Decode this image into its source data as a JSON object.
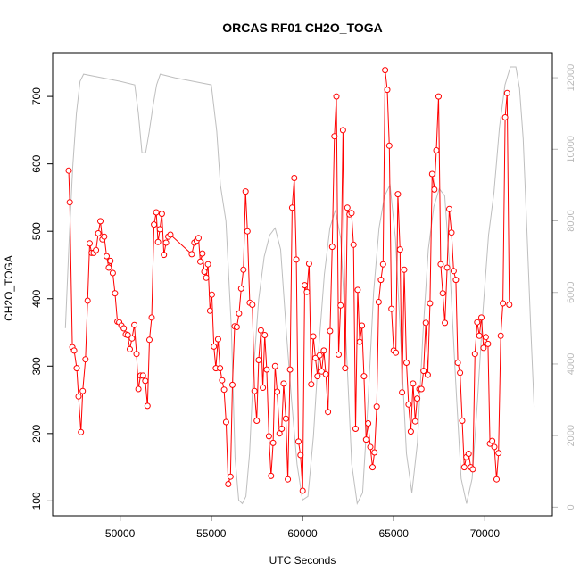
{
  "chart_data": {
    "type": "line",
    "title": "ORCAS RF01 CH2O_TOGA",
    "xlabel": "UTC Seconds",
    "ylabel": "CH2O_TOGA",
    "xlim": [
      46300,
      73700
    ],
    "ylim": [
      78,
      765
    ],
    "y2lim": [
      -240,
      12700
    ],
    "x_ticks": [
      50000,
      55000,
      60000,
      65000,
      70000
    ],
    "y_ticks": [
      100,
      200,
      300,
      400,
      500,
      600,
      700
    ],
    "y2_ticks": [
      0,
      2000,
      4000,
      6000,
      8000,
      10000,
      12000
    ],
    "colors": {
      "ch2o": "#ff0000",
      "altitude": "#bebebe",
      "frame": "#000000",
      "right_axis": "#b8b8b8"
    },
    "series": [
      {
        "role": "CH2O_TOGA",
        "style": "line+open-circles",
        "points": [
          [
            47180,
            590
          ],
          [
            47240,
            543
          ],
          [
            47380,
            328
          ],
          [
            47480,
            323
          ],
          [
            47620,
            297
          ],
          [
            47720,
            255
          ],
          [
            47850,
            202
          ],
          [
            47950,
            263
          ],
          [
            48100,
            310
          ],
          [
            48220,
            397
          ],
          [
            48330,
            482
          ],
          [
            48440,
            468
          ],
          [
            48550,
            468
          ],
          [
            48680,
            472
          ],
          [
            48800,
            497
          ],
          [
            48920,
            515
          ],
          [
            49030,
            488
          ],
          [
            49130,
            492
          ],
          [
            49260,
            463
          ],
          [
            49380,
            446
          ],
          [
            49470,
            456
          ],
          [
            49600,
            438
          ],
          [
            49720,
            408
          ],
          [
            49850,
            366
          ],
          [
            49950,
            365
          ],
          [
            50070,
            360
          ],
          [
            50200,
            356
          ],
          [
            50310,
            347
          ],
          [
            50420,
            346
          ],
          [
            50530,
            325
          ],
          [
            50650,
            341
          ],
          [
            50780,
            361
          ],
          [
            50900,
            318
          ],
          [
            51000,
            266
          ],
          [
            51120,
            286
          ],
          [
            51250,
            286
          ],
          [
            51380,
            278
          ],
          [
            51500,
            241
          ],
          [
            51610,
            339
          ],
          [
            51730,
            372
          ],
          [
            51860,
            510
          ],
          [
            51980,
            528
          ],
          [
            52080,
            484
          ],
          [
            52180,
            503
          ],
          [
            52290,
            526
          ],
          [
            52400,
            465
          ],
          [
            52520,
            483
          ],
          [
            52640,
            492
          ],
          [
            52760,
            495
          ],
          [
            53930,
            466
          ],
          [
            54070,
            483
          ],
          [
            54190,
            486
          ],
          [
            54300,
            490
          ],
          [
            54400,
            455
          ],
          [
            54510,
            467
          ],
          [
            54620,
            440
          ],
          [
            54720,
            431
          ],
          [
            54820,
            451
          ],
          [
            54930,
            382
          ],
          [
            55030,
            406
          ],
          [
            55140,
            329
          ],
          [
            55250,
            297
          ],
          [
            55370,
            340
          ],
          [
            55480,
            297
          ],
          [
            55590,
            279
          ],
          [
            55700,
            265
          ],
          [
            55810,
            217
          ],
          [
            55930,
            125
          ],
          [
            56050,
            136
          ],
          [
            56160,
            272
          ],
          [
            56280,
            359
          ],
          [
            56400,
            358
          ],
          [
            56520,
            378
          ],
          [
            56640,
            415
          ],
          [
            56760,
            443
          ],
          [
            56880,
            559
          ],
          [
            56980,
            500
          ],
          [
            57110,
            394
          ],
          [
            57250,
            391
          ],
          [
            57370,
            263
          ],
          [
            57490,
            219
          ],
          [
            57600,
            309
          ],
          [
            57720,
            353
          ],
          [
            57830,
            268
          ],
          [
            57930,
            346
          ],
          [
            58040,
            295
          ],
          [
            58160,
            196
          ],
          [
            58280,
            137
          ],
          [
            58390,
            186
          ],
          [
            58500,
            300
          ],
          [
            58610,
            262
          ],
          [
            58740,
            200
          ],
          [
            58860,
            207
          ],
          [
            58970,
            274
          ],
          [
            59090,
            222
          ],
          [
            59200,
            132
          ],
          [
            59320,
            295
          ],
          [
            59430,
            535
          ],
          [
            59550,
            579
          ],
          [
            59660,
            458
          ],
          [
            59780,
            188
          ],
          [
            59890,
            168
          ],
          [
            60010,
            115
          ],
          [
            60120,
            420
          ],
          [
            60240,
            410
          ],
          [
            60360,
            452
          ],
          [
            60480,
            273
          ],
          [
            60590,
            344
          ],
          [
            60710,
            312
          ],
          [
            60820,
            285
          ],
          [
            60940,
            316
          ],
          [
            61050,
            292
          ],
          [
            61170,
            323
          ],
          [
            61280,
            288
          ],
          [
            61400,
            232
          ],
          [
            61510,
            352
          ],
          [
            61630,
            477
          ],
          [
            61750,
            641
          ],
          [
            61860,
            700
          ],
          [
            61980,
            317
          ],
          [
            62090,
            390
          ],
          [
            62220,
            650
          ],
          [
            62340,
            297
          ],
          [
            62460,
            535
          ],
          [
            62580,
            525
          ],
          [
            62690,
            527
          ],
          [
            62800,
            480
          ],
          [
            62910,
            207
          ],
          [
            63030,
            413
          ],
          [
            63140,
            336
          ],
          [
            63260,
            360
          ],
          [
            63370,
            285
          ],
          [
            63490,
            191
          ],
          [
            63600,
            215
          ],
          [
            63720,
            180
          ],
          [
            63840,
            150
          ],
          [
            63950,
            172
          ],
          [
            64070,
            240
          ],
          [
            64180,
            395
          ],
          [
            64300,
            428
          ],
          [
            64420,
            451
          ],
          [
            64530,
            739
          ],
          [
            64650,
            710
          ],
          [
            64760,
            627
          ],
          [
            64880,
            385
          ],
          [
            65000,
            323
          ],
          [
            65120,
            320
          ],
          [
            65230,
            555
          ],
          [
            65350,
            473
          ],
          [
            65460,
            261
          ],
          [
            65580,
            443
          ],
          [
            65700,
            305
          ],
          [
            65820,
            243
          ],
          [
            65940,
            203
          ],
          [
            66060,
            274
          ],
          [
            66180,
            218
          ],
          [
            66290,
            252
          ],
          [
            66410,
            266
          ],
          [
            66520,
            266
          ],
          [
            66640,
            293
          ],
          [
            66760,
            364
          ],
          [
            66870,
            287
          ],
          [
            66990,
            393
          ],
          [
            67110,
            585
          ],
          [
            67230,
            562
          ],
          [
            67340,
            620
          ],
          [
            67460,
            700
          ],
          [
            67580,
            451
          ],
          [
            67690,
            408
          ],
          [
            67810,
            364
          ],
          [
            67930,
            446
          ],
          [
            68050,
            533
          ],
          [
            68170,
            498
          ],
          [
            68290,
            441
          ],
          [
            68410,
            428
          ],
          [
            68520,
            305
          ],
          [
            68640,
            290
          ],
          [
            68760,
            219
          ],
          [
            68870,
            150
          ],
          [
            68990,
            165
          ],
          [
            69110,
            170
          ],
          [
            69230,
            150
          ],
          [
            69340,
            147
          ],
          [
            69460,
            318
          ],
          [
            69580,
            365
          ],
          [
            69700,
            345
          ],
          [
            69810,
            372
          ],
          [
            69930,
            327
          ],
          [
            70050,
            343
          ],
          [
            70170,
            333
          ],
          [
            70280,
            185
          ],
          [
            70400,
            189
          ],
          [
            70520,
            180
          ],
          [
            70640,
            132
          ],
          [
            70750,
            171
          ],
          [
            70870,
            345
          ],
          [
            70990,
            393
          ],
          [
            71110,
            669
          ],
          [
            71220,
            705
          ],
          [
            71340,
            391
          ]
        ]
      },
      {
        "role": "altitude (right axis)",
        "style": "line",
        "points": [
          [
            47000,
            5000
          ],
          [
            47200,
            7400
          ],
          [
            47400,
            9500
          ],
          [
            47600,
            11000
          ],
          [
            47800,
            11900
          ],
          [
            48000,
            12100
          ],
          [
            49000,
            12000
          ],
          [
            50000,
            11900
          ],
          [
            50800,
            11800
          ],
          [
            51000,
            11000
          ],
          [
            51200,
            9900
          ],
          [
            51400,
            9900
          ],
          [
            51600,
            10500
          ],
          [
            51800,
            11200
          ],
          [
            52000,
            11800
          ],
          [
            52200,
            12100
          ],
          [
            53000,
            12000
          ],
          [
            54000,
            11900
          ],
          [
            55000,
            11800
          ],
          [
            55300,
            10500
          ],
          [
            55500,
            9000
          ],
          [
            55800,
            8000
          ],
          [
            56100,
            5000
          ],
          [
            56300,
            1400
          ],
          [
            56500,
            200
          ],
          [
            56700,
            100
          ],
          [
            56900,
            300
          ],
          [
            57100,
            1500
          ],
          [
            57300,
            3700
          ],
          [
            57600,
            5800
          ],
          [
            57900,
            7000
          ],
          [
            58200,
            7600
          ],
          [
            58500,
            7800
          ],
          [
            58800,
            7200
          ],
          [
            59100,
            5000
          ],
          [
            59400,
            3000
          ],
          [
            59700,
            1200
          ],
          [
            60000,
            200
          ],
          [
            60300,
            300
          ],
          [
            60600,
            2000
          ],
          [
            60900,
            4500
          ],
          [
            61200,
            6500
          ],
          [
            61500,
            7800
          ],
          [
            61800,
            8300
          ],
          [
            62100,
            7500
          ],
          [
            62400,
            4500
          ],
          [
            62700,
            1200
          ],
          [
            63000,
            100
          ],
          [
            63300,
            400
          ],
          [
            63600,
            3000
          ],
          [
            63900,
            6000
          ],
          [
            64200,
            7800
          ],
          [
            64500,
            8700
          ],
          [
            64800,
            9000
          ],
          [
            65100,
            7500
          ],
          [
            65400,
            4500
          ],
          [
            65700,
            1500
          ],
          [
            66000,
            400
          ],
          [
            66300,
            1800
          ],
          [
            66600,
            4800
          ],
          [
            66900,
            7200
          ],
          [
            67200,
            8400
          ],
          [
            67500,
            8900
          ],
          [
            67800,
            8700
          ],
          [
            68100,
            6500
          ],
          [
            68400,
            3500
          ],
          [
            68700,
            800
          ],
          [
            69000,
            100
          ],
          [
            69300,
            800
          ],
          [
            69600,
            3000
          ],
          [
            69900,
            5500
          ],
          [
            70200,
            7600
          ],
          [
            70500,
            8800
          ],
          [
            70800,
            10600
          ],
          [
            71100,
            11800
          ],
          [
            71400,
            12300
          ],
          [
            71700,
            12300
          ],
          [
            71900,
            11700
          ],
          [
            72100,
            10300
          ],
          [
            72300,
            7800
          ],
          [
            72500,
            5200
          ],
          [
            72700,
            2800
          ]
        ]
      }
    ],
    "grid": false,
    "legend": "none"
  }
}
